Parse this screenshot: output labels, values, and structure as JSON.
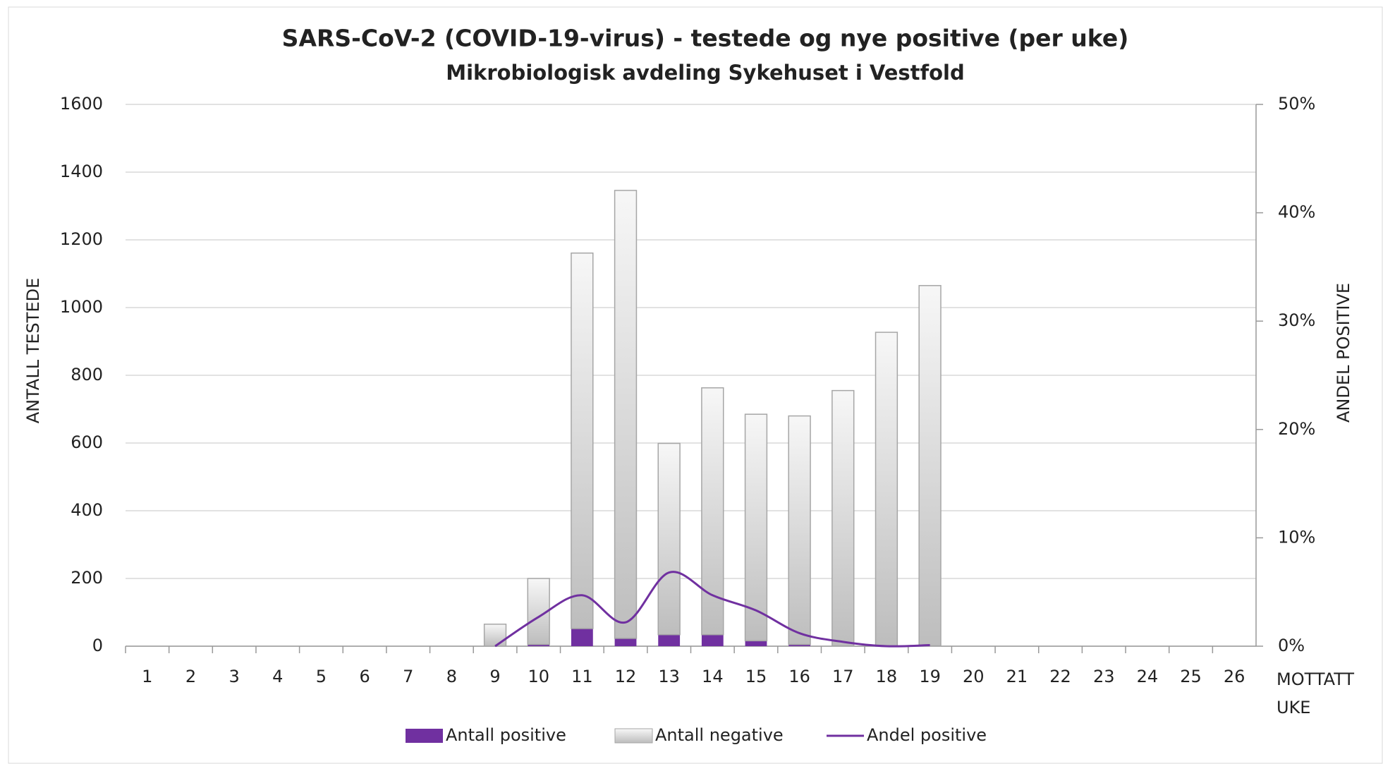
{
  "chart_data": {
    "type": "bar",
    "title": "SARS-CoV-2 (COVID-19-virus) - testede og nye positive (per uke)",
    "subtitle": "Mikrobiologisk avdeling Sykehuset i Vestfold",
    "y_label": "ANTALL TESTEDE",
    "y2_label": "ANDEL POSITIVE",
    "x_label": "MOTTATT UKE",
    "stacked": true,
    "grid": true,
    "categories": [
      "1",
      "2",
      "3",
      "4",
      "5",
      "6",
      "7",
      "8",
      "9",
      "10",
      "11",
      "12",
      "13",
      "14",
      "15",
      "16",
      "17",
      "18",
      "19",
      "20",
      "21",
      "22",
      "23",
      "24",
      "25",
      "26"
    ],
    "series": [
      {
        "name": "Antall positive",
        "color": "#7030a0",
        "values": [
          null,
          null,
          null,
          null,
          null,
          null,
          null,
          null,
          0,
          5,
          52,
          23,
          34,
          34,
          16,
          5,
          1,
          0,
          1,
          null,
          null,
          null,
          null,
          null,
          null,
          null
        ]
      },
      {
        "name": "Antall negative",
        "color": "#d9d9d9",
        "values": [
          null,
          null,
          null,
          null,
          null,
          null,
          null,
          null,
          65,
          195,
          1109,
          1323,
          565,
          729,
          669,
          675,
          754,
          927,
          1064,
          null,
          null,
          null,
          null,
          null,
          null,
          null
        ]
      },
      {
        "name": "Andel positive",
        "color": "#7030a0",
        "type": "line",
        "axis": "y2",
        "values": [
          null,
          null,
          null,
          null,
          null,
          null,
          null,
          null,
          0,
          2.7,
          4.7,
          2.2,
          6.8,
          4.7,
          3.3,
          1.2,
          0.4,
          0,
          0.1,
          null,
          null,
          null,
          null,
          null,
          null,
          null
        ]
      }
    ],
    "ylim": [
      0,
      1600
    ],
    "yticks": [
      0,
      200,
      400,
      600,
      800,
      1000,
      1200,
      1400,
      1600
    ],
    "y2lim": [
      0,
      50
    ],
    "y2ticks": [
      {
        "value": 0,
        "label": "0%"
      },
      {
        "value": 10,
        "label": "10%"
      },
      {
        "value": 20,
        "label": "20%"
      },
      {
        "value": 30,
        "label": "30%"
      },
      {
        "value": 40,
        "label": "40%"
      },
      {
        "value": 50,
        "label": "50%"
      }
    ]
  }
}
